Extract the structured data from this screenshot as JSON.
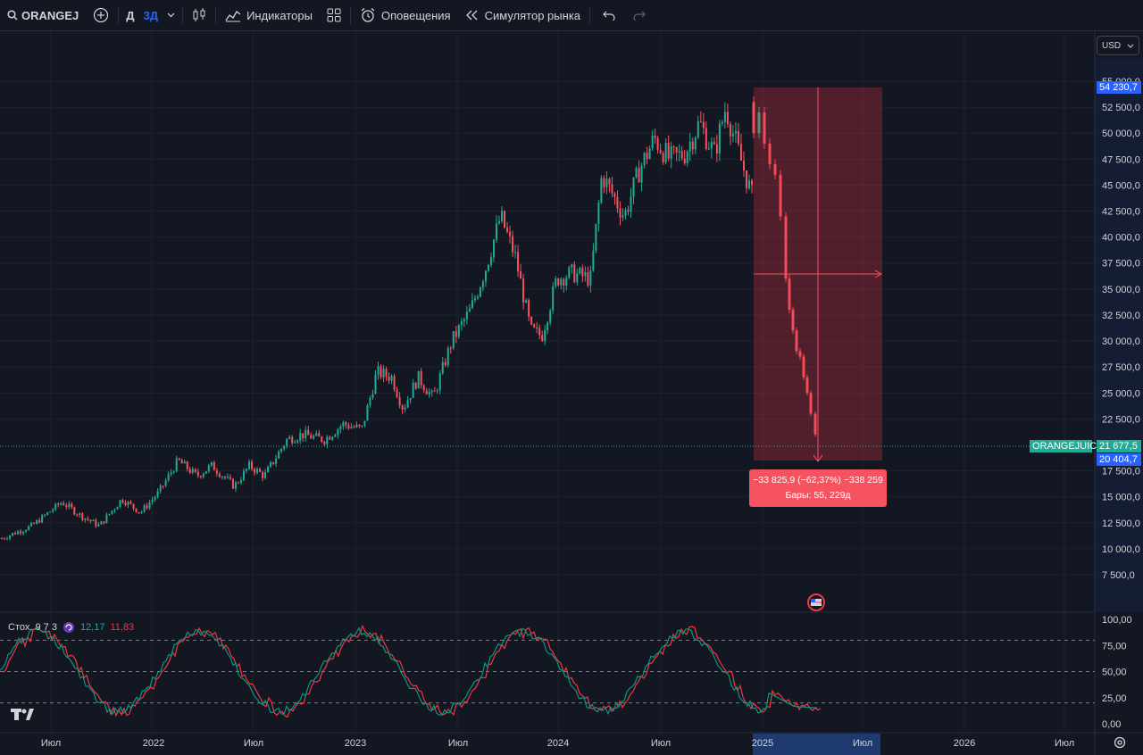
{
  "toolbar": {
    "symbol": "ORANGEJ",
    "timeframes": [
      "Д",
      "3Д"
    ],
    "active_timeframe": "3Д",
    "indicators_label": "Индикаторы",
    "alerts_label": "Оповещения",
    "replay_label": "Симулятор рынка"
  },
  "price_scale": {
    "currency": "USD",
    "ticks": [
      "55 000,0",
      "52 500,0",
      "50 000,0",
      "47 500,0",
      "45 000,0",
      "42 500,0",
      "40 000,0",
      "37 500,0",
      "35 000,0",
      "32 500,0",
      "30 000,0",
      "27 500,0",
      "25 000,0",
      "22 500,0",
      "17 500,0",
      "15 000,0",
      "12 500,0",
      "10 000,0",
      "7 500,0"
    ],
    "high_label": "54 230,7",
    "current_label": "21 677,5",
    "low_label": "20 404,7",
    "symbol_tag": "ORANGEJUICE"
  },
  "stoch_scale": {
    "ticks": [
      "100,00",
      "75,00",
      "50,00",
      "25,00",
      "0,00"
    ]
  },
  "time_axis": {
    "labels": [
      "Июл",
      "2022",
      "Июл",
      "2023",
      "Июл",
      "2024",
      "Июл",
      "2025",
      "Июл",
      "2026",
      "Июл"
    ]
  },
  "measurement": {
    "line1": "−33 825,9 (−62,37%) −338 259",
    "line2": "Бары: 55, 229д"
  },
  "stochastic": {
    "name": "Стох. 9 7 3",
    "k_value": "12,17",
    "d_value": "11,83",
    "k_color": "#089981",
    "d_color": "#f23645"
  },
  "colors": {
    "up": "#22ab94",
    "down": "#f7525f",
    "accent": "#2962ff",
    "background": "#131722"
  },
  "chart_data": {
    "type": "candlestick",
    "ylim": [
      7500,
      55000
    ],
    "price_path": [
      [
        0,
        11000
      ],
      [
        0.04,
        12200
      ],
      [
        0.08,
        14500
      ],
      [
        0.105,
        13200
      ],
      [
        0.13,
        12200
      ],
      [
        0.16,
        14800
      ],
      [
        0.185,
        13500
      ],
      [
        0.21,
        15500
      ],
      [
        0.235,
        18500
      ],
      [
        0.26,
        17000
      ],
      [
        0.28,
        18000
      ],
      [
        0.31,
        16000
      ],
      [
        0.33,
        18000
      ],
      [
        0.35,
        17000
      ],
      [
        0.38,
        20500
      ],
      [
        0.4,
        21000
      ],
      [
        0.43,
        20500
      ],
      [
        0.455,
        22000
      ],
      [
        0.48,
        21500
      ],
      [
        0.5,
        27000
      ],
      [
        0.52,
        26500
      ],
      [
        0.535,
        23500
      ],
      [
        0.555,
        26500
      ],
      [
        0.575,
        24500
      ],
      [
        0.6,
        30000
      ],
      [
        0.625,
        33000
      ],
      [
        0.645,
        37000
      ],
      [
        0.665,
        42000
      ],
      [
        0.685,
        38000
      ],
      [
        0.705,
        31000
      ],
      [
        0.72,
        30500
      ],
      [
        0.74,
        36000
      ],
      [
        0.76,
        36500
      ],
      [
        0.785,
        36000
      ],
      [
        0.8,
        46000
      ],
      [
        0.815,
        44000
      ],
      [
        0.83,
        42000
      ],
      [
        0.85,
        46500
      ],
      [
        0.87,
        49500
      ],
      [
        0.89,
        47500
      ],
      [
        0.91,
        48000
      ],
      [
        0.93,
        51000
      ],
      [
        0.95,
        48000
      ],
      [
        0.965,
        52500
      ],
      [
        0.975,
        50000
      ],
      [
        0.985,
        47500
      ],
      [
        1.0,
        44000
      ]
    ]
  }
}
